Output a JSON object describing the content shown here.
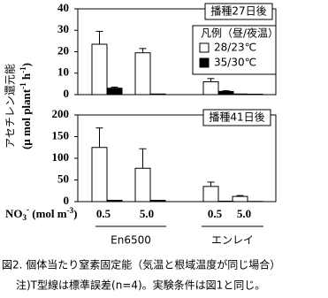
{
  "chart_data": [
    {
      "type": "bar",
      "title": "播種27日後",
      "y_label": [
        "アセチレン還元能",
        "(μ mol plant",
        "-1",
        " h",
        "-1",
        ")"
      ],
      "legend_title": "凡例（昼/夜温）",
      "series": [
        {
          "name": "28/23℃",
          "color": "#ffffff",
          "values": [
            23.5,
            19.5,
            6,
            0.3
          ],
          "errors": [
            6,
            2,
            1.5,
            0
          ]
        },
        {
          "name": "35/30℃",
          "color": "#000000",
          "values": [
            3,
            0.3,
            1.5,
            0.2
          ],
          "errors": [
            0.5,
            0,
            0.3,
            0
          ]
        }
      ],
      "ylim": [
        0,
        40
      ],
      "yticks": [
        0,
        10,
        20,
        30,
        40
      ]
    },
    {
      "type": "bar",
      "title": "播種41日後",
      "categories": [
        "0.5",
        "5.0",
        "0.5",
        "5.0"
      ],
      "groups": [
        "En6500",
        "エンレイ"
      ],
      "x_label": [
        "NO",
        "3",
        "-",
        " (mol m",
        "-3",
        ")"
      ],
      "series": [
        {
          "color": "#ffffff",
          "values": [
            125,
            77,
            35,
            12
          ],
          "errors": [
            45,
            45,
            10,
            2
          ]
        },
        {
          "color": "#000000",
          "values": [
            3,
            3,
            1,
            0.5
          ],
          "errors": [
            0,
            0,
            0,
            0
          ]
        }
      ],
      "ylim": [
        0,
        200
      ],
      "yticks": [
        0,
        50,
        100,
        150,
        200
      ]
    }
  ],
  "caption": [
    "図2. 個体当たり窒素固定能（気温と根域温度が同じ場合）",
    "注)T型線は標準誤差(n=4)。実験条件は図1と同じ。"
  ]
}
